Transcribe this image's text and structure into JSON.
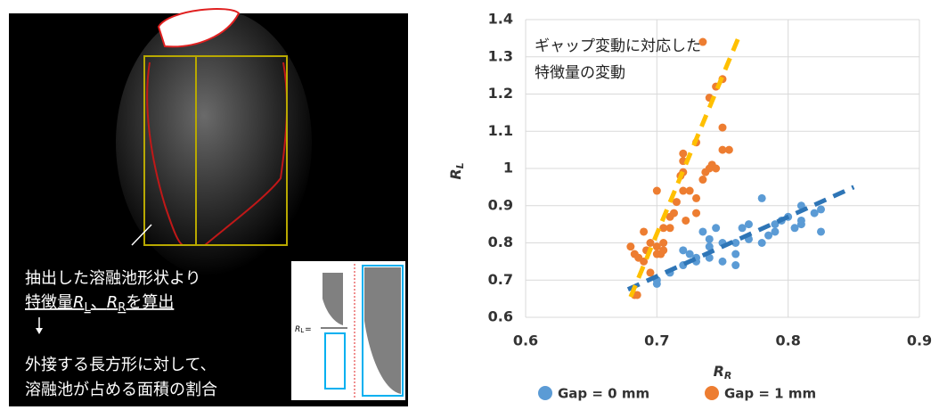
{
  "image_panel": {
    "lines": [
      "抽出した溶融池形状より",
      [
        "特徴量",
        "R",
        "L",
        "、",
        "R",
        "R",
        "を算出"
      ],
      "外接する長方形に対して、",
      "溶融池が占める面積の割合"
    ],
    "inset_label": [
      "R",
      "L",
      "="
    ]
  },
  "chart_data": {
    "type": "scatter",
    "annotation": [
      "ギャップ変動に対応した",
      "特徴量の変動"
    ],
    "x_label": [
      "R",
      "R"
    ],
    "y_label": [
      "R",
      "L"
    ],
    "xlim": [
      0.6,
      0.9
    ],
    "xticks": [
      0.6,
      0.7,
      0.8,
      0.9
    ],
    "ylim": [
      0.6,
      1.4
    ],
    "yticks": [
      0.6,
      0.7,
      0.8,
      0.9,
      1,
      1.1,
      1.2,
      1.3,
      1.4
    ],
    "grid": true,
    "legend": "bottom",
    "series": [
      {
        "name": "Gap = 0 mm",
        "color": "#5b9bd5",
        "x": [
          0.7,
          0.7,
          0.71,
          0.72,
          0.72,
          0.73,
          0.73,
          0.74,
          0.74,
          0.74,
          0.745,
          0.75,
          0.75,
          0.76,
          0.76,
          0.76,
          0.765,
          0.77,
          0.77,
          0.78,
          0.785,
          0.79,
          0.79,
          0.795,
          0.78,
          0.8,
          0.805,
          0.81,
          0.81,
          0.81,
          0.82,
          0.825,
          0.825,
          0.735,
          0.725
        ],
        "y": [
          0.69,
          0.7,
          0.72,
          0.74,
          0.78,
          0.76,
          0.75,
          0.76,
          0.79,
          0.81,
          0.84,
          0.8,
          0.75,
          0.74,
          0.77,
          0.8,
          0.84,
          0.85,
          0.81,
          0.8,
          0.82,
          0.83,
          0.85,
          0.86,
          0.92,
          0.87,
          0.84,
          0.85,
          0.86,
          0.9,
          0.88,
          0.89,
          0.83,
          0.83,
          0.77
        ]
      },
      {
        "name": "Gap = 1 mm",
        "color": "#ed7d31",
        "x": [
          0.68,
          0.683,
          0.686,
          0.69,
          0.692,
          0.695,
          0.683,
          0.685,
          0.695,
          0.7,
          0.7,
          0.7,
          0.703,
          0.705,
          0.705,
          0.71,
          0.71,
          0.713,
          0.715,
          0.718,
          0.72,
          0.72,
          0.72,
          0.72,
          0.722,
          0.725,
          0.73,
          0.73,
          0.735,
          0.737,
          0.74,
          0.742,
          0.745,
          0.75,
          0.73,
          0.74,
          0.745,
          0.75,
          0.75,
          0.755,
          0.735,
          0.705,
          0.69
        ],
        "y": [
          0.79,
          0.77,
          0.76,
          0.75,
          0.78,
          0.72,
          0.66,
          0.66,
          0.8,
          0.77,
          0.79,
          0.94,
          0.77,
          0.78,
          0.8,
          0.84,
          0.87,
          0.88,
          0.91,
          0.98,
          0.99,
          1.02,
          1.04,
          0.94,
          0.86,
          0.94,
          0.88,
          0.92,
          0.97,
          0.99,
          1.0,
          1.01,
          1.0,
          1.05,
          1.07,
          1.19,
          1.22,
          1.24,
          1.11,
          1.05,
          1.34,
          0.84,
          0.83
        ]
      }
    ],
    "trendlines": [
      {
        "color": "#2e75b6",
        "x": [
          0.678,
          0.85
        ],
        "y": [
          0.675,
          0.95
        ]
      },
      {
        "color": "#ffc000",
        "x": [
          0.68,
          0.762
        ],
        "y": [
          0.655,
          1.35
        ]
      }
    ]
  }
}
